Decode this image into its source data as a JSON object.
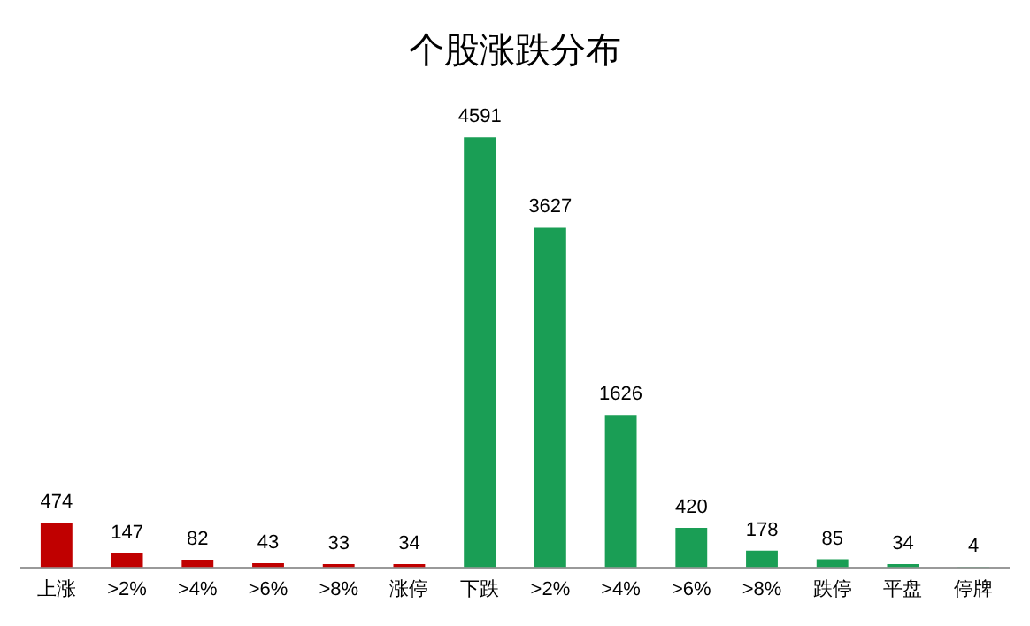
{
  "chart_data": {
    "type": "bar",
    "title": "个股涨跌分布",
    "categories": [
      "上涨",
      ">2%",
      ">4%",
      ">6%",
      ">8%",
      "涨停",
      "下跌",
      ">2%",
      ">4%",
      ">6%",
      ">8%",
      "跌停",
      "平盘",
      "停牌"
    ],
    "values": [
      474,
      147,
      82,
      43,
      33,
      34,
      4591,
      3627,
      1626,
      420,
      178,
      85,
      34,
      4
    ],
    "colors": [
      "#c00000",
      "#c00000",
      "#c00000",
      "#c00000",
      "#c00000",
      "#c00000",
      "#1a9e55",
      "#1a9e55",
      "#1a9e55",
      "#1a9e55",
      "#1a9e55",
      "#1a9e55",
      "#1a9e55",
      "#1a9e55"
    ],
    "data_labels": true,
    "grid": false,
    "legend": false
  }
}
